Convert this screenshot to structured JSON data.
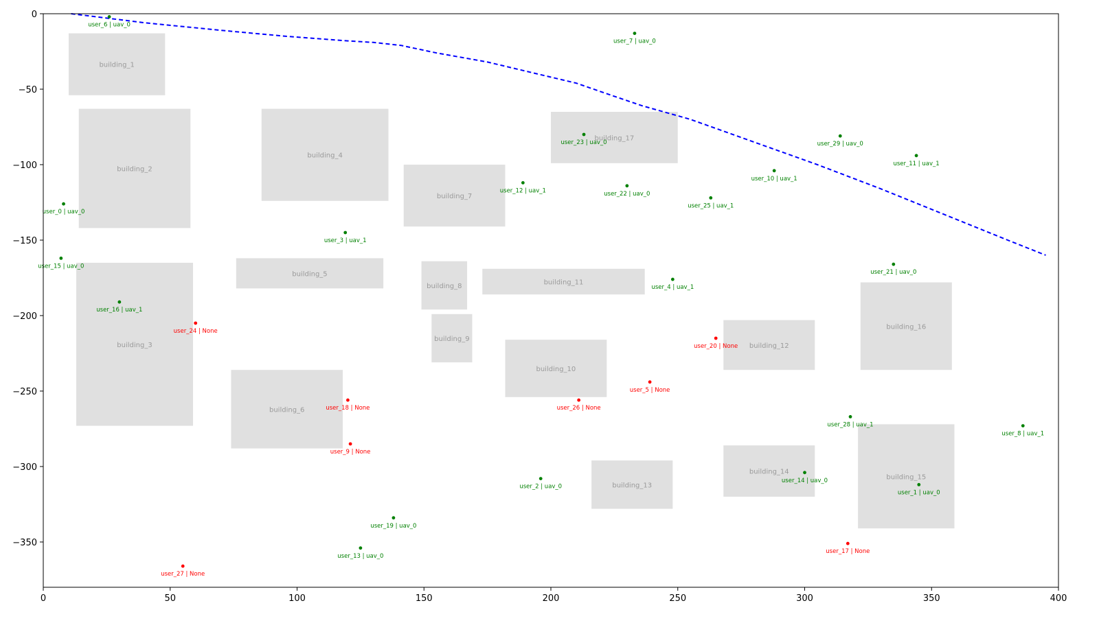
{
  "chart_data": {
    "type": "scatter",
    "title": "",
    "xlabel": "",
    "ylabel": "",
    "xlim": [
      0,
      400
    ],
    "ylim": [
      -380,
      0
    ],
    "xticks": [
      0,
      50,
      100,
      150,
      200,
      250,
      300,
      350,
      400
    ],
    "yticks": [
      0,
      -50,
      -100,
      -150,
      -200,
      -250,
      -300,
      -350
    ],
    "grid": false,
    "colors": {
      "building_fill": "#e0e0e0",
      "building_label": "#9a9a9a",
      "assigned_user": "#008000",
      "unassigned_user": "#ff0000",
      "trajectory": "#0000ff"
    },
    "buildings": [
      {
        "name": "building_1",
        "x0": 10,
        "x1": 48,
        "y0": -54,
        "y1": -13
      },
      {
        "name": "building_2",
        "x0": 14,
        "x1": 58,
        "y0": -142,
        "y1": -63
      },
      {
        "name": "building_3",
        "x0": 13,
        "x1": 59,
        "y0": -273,
        "y1": -165
      },
      {
        "name": "building_4",
        "x0": 86,
        "x1": 136,
        "y0": -124,
        "y1": -63
      },
      {
        "name": "building_5",
        "x0": 76,
        "x1": 134,
        "y0": -182,
        "y1": -162
      },
      {
        "name": "building_6",
        "x0": 74,
        "x1": 118,
        "y0": -288,
        "y1": -236
      },
      {
        "name": "building_7",
        "x0": 142,
        "x1": 182,
        "y0": -141,
        "y1": -100
      },
      {
        "name": "building_8",
        "x0": 149,
        "x1": 167,
        "y0": -196,
        "y1": -164
      },
      {
        "name": "building_9",
        "x0": 153,
        "x1": 169,
        "y0": -231,
        "y1": -199
      },
      {
        "name": "building_10",
        "x0": 182,
        "x1": 222,
        "y0": -254,
        "y1": -216
      },
      {
        "name": "building_11",
        "x0": 173,
        "x1": 237,
        "y0": -186,
        "y1": -169
      },
      {
        "name": "building_12",
        "x0": 268,
        "x1": 304,
        "y0": -236,
        "y1": -203
      },
      {
        "name": "building_13",
        "x0": 216,
        "x1": 248,
        "y0": -328,
        "y1": -296
      },
      {
        "name": "building_14",
        "x0": 268,
        "x1": 304,
        "y0": -320,
        "y1": -286
      },
      {
        "name": "building_15",
        "x0": 321,
        "x1": 359,
        "y0": -341,
        "y1": -272
      },
      {
        "name": "building_16",
        "x0": 322,
        "x1": 358,
        "y0": -236,
        "y1": -178
      },
      {
        "name": "building_17",
        "x0": 200,
        "x1": 250,
        "y0": -99,
        "y1": -65
      }
    ],
    "users": [
      {
        "label": "user_0 | uav_0",
        "x": 8,
        "y": -126,
        "assigned": true
      },
      {
        "label": "user_1 | uav_0",
        "x": 345,
        "y": -312,
        "assigned": true
      },
      {
        "label": "user_2 | uav_0",
        "x": 196,
        "y": -308,
        "assigned": true
      },
      {
        "label": "user_3 | uav_1",
        "x": 119,
        "y": -145,
        "assigned": true
      },
      {
        "label": "user_4 | uav_1",
        "x": 248,
        "y": -176,
        "assigned": true
      },
      {
        "label": "user_5 | None",
        "x": 239,
        "y": -244,
        "assigned": false
      },
      {
        "label": "user_6 | uav_0",
        "x": 26,
        "y": -2,
        "assigned": true
      },
      {
        "label": "user_7 | uav_0",
        "x": 233,
        "y": -13,
        "assigned": true
      },
      {
        "label": "user_8 | uav_1",
        "x": 386,
        "y": -273,
        "assigned": true
      },
      {
        "label": "user_9 | None",
        "x": 121,
        "y": -285,
        "assigned": false
      },
      {
        "label": "user_10 | uav_1",
        "x": 288,
        "y": -104,
        "assigned": true
      },
      {
        "label": "user_11 | uav_1",
        "x": 344,
        "y": -94,
        "assigned": true
      },
      {
        "label": "user_12 | uav_1",
        "x": 189,
        "y": -112,
        "assigned": true
      },
      {
        "label": "user_13 | uav_0",
        "x": 125,
        "y": -354,
        "assigned": true
      },
      {
        "label": "user_14 | uav_0",
        "x": 300,
        "y": -304,
        "assigned": true
      },
      {
        "label": "user_15 | uav_0",
        "x": 7,
        "y": -162,
        "assigned": true
      },
      {
        "label": "user_16 | uav_1",
        "x": 30,
        "y": -191,
        "assigned": true
      },
      {
        "label": "user_17 | None",
        "x": 317,
        "y": -351,
        "assigned": false
      },
      {
        "label": "user_18 | None",
        "x": 120,
        "y": -256,
        "assigned": false
      },
      {
        "label": "user_19 | uav_0",
        "x": 138,
        "y": -334,
        "assigned": true
      },
      {
        "label": "user_20 | None",
        "x": 265,
        "y": -215,
        "assigned": false
      },
      {
        "label": "user_21 | uav_0",
        "x": 335,
        "y": -166,
        "assigned": true
      },
      {
        "label": "user_22 | uav_0",
        "x": 230,
        "y": -114,
        "assigned": true
      },
      {
        "label": "user_23 | uav_0",
        "x": 213,
        "y": -80,
        "assigned": true
      },
      {
        "label": "user_24 | None",
        "x": 60,
        "y": -205,
        "assigned": false
      },
      {
        "label": "user_25 | uav_1",
        "x": 263,
        "y": -122,
        "assigned": true
      },
      {
        "label": "user_26 | None",
        "x": 211,
        "y": -256,
        "assigned": false
      },
      {
        "label": "user_27 | None",
        "x": 55,
        "y": -366,
        "assigned": false
      },
      {
        "label": "user_28 | uav_1",
        "x": 318,
        "y": -267,
        "assigned": true
      },
      {
        "label": "user_29 | uav_0",
        "x": 314,
        "y": -81,
        "assigned": true
      }
    ],
    "trajectory": [
      [
        11,
        0
      ],
      [
        40,
        -6
      ],
      [
        70,
        -11
      ],
      [
        96,
        -15
      ],
      [
        120,
        -18
      ],
      [
        130,
        -19
      ],
      [
        141,
        -21
      ],
      [
        155,
        -26
      ],
      [
        175,
        -32
      ],
      [
        195,
        -40
      ],
      [
        210,
        -46
      ],
      [
        222,
        -53
      ],
      [
        236,
        -61
      ],
      [
        255,
        -70
      ],
      [
        280,
        -85
      ],
      [
        305,
        -100
      ],
      [
        330,
        -116
      ],
      [
        355,
        -133
      ],
      [
        380,
        -150
      ],
      [
        395,
        -160
      ]
    ]
  }
}
